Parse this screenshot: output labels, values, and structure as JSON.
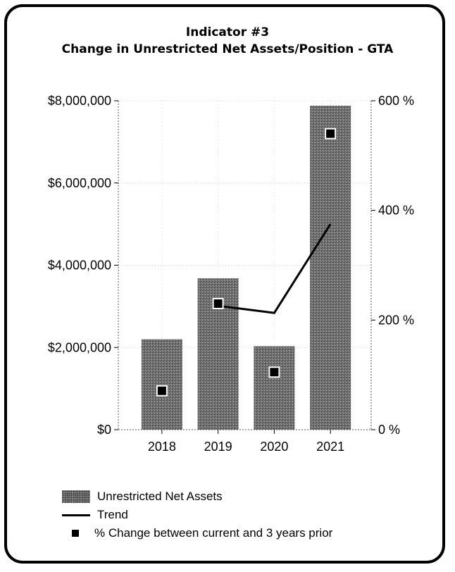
{
  "title_line1": "Indicator #3",
  "title_line2": "Change in Unrestricted Net Assets/Position - GTA",
  "chart_data": {
    "type": "bar",
    "categories": [
      "2018",
      "2019",
      "2020",
      "2021"
    ],
    "series": [
      {
        "name": "Unrestricted Net Assets",
        "type": "bar",
        "axis": "left",
        "values": [
          2200000,
          3680000,
          2030000,
          7880000
        ]
      },
      {
        "name": "Trend",
        "type": "line",
        "axis": "right",
        "x": [
          "2019",
          "2020",
          "2021"
        ],
        "values": [
          226,
          213,
          375
        ]
      },
      {
        "name": "% Change between current and 3 years prior",
        "type": "scatter",
        "axis": "right",
        "values": [
          71,
          230,
          105,
          540
        ]
      }
    ],
    "y_left": {
      "min": 0,
      "max": 8000000,
      "ticks": [
        0,
        2000000,
        4000000,
        6000000,
        8000000
      ],
      "tick_labels": [
        "$0",
        "$2,000,000",
        "$4,000,000",
        "$6,000,000",
        "$8,000,000"
      ]
    },
    "y_right": {
      "min": 0,
      "max": 600,
      "ticks": [
        0,
        200,
        400,
        600
      ],
      "tick_labels": [
        "0 %",
        "200 %",
        "400 %",
        "600 %"
      ]
    },
    "grid": true,
    "legend_position": "bottom-left"
  },
  "legend": {
    "bar_label": "Unrestricted Net Assets",
    "line_label": "Trend",
    "marker_label": "% Change between current and 3 years prior"
  },
  "colors": {
    "bar": "#6f6f6f",
    "line": "#000000",
    "marker": "#000000",
    "marker_border": "#ffffff"
  }
}
